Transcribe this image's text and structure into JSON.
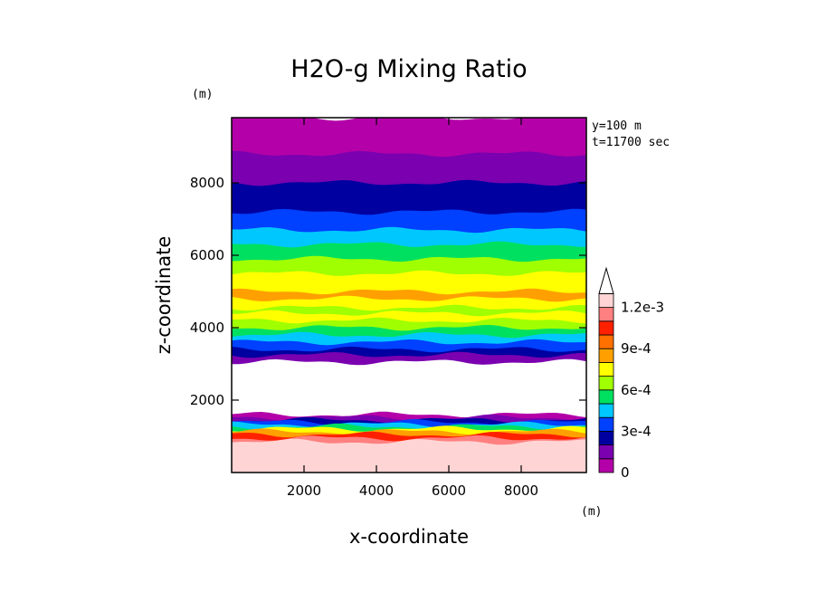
{
  "chart_data": {
    "type": "heatmap",
    "title": "H2O-g Mixing Ratio",
    "xlabel": "x-coordinate",
    "ylabel": "z-coordinate",
    "x_unit": "(m)",
    "y_unit": "(m)",
    "annotations": [
      "y=100 m",
      "t=11700 sec"
    ],
    "xlim": [
      0,
      9800
    ],
    "ylim": [
      0,
      9800
    ],
    "xticks": [
      2000,
      4000,
      6000,
      8000
    ],
    "yticks": [
      2000,
      4000,
      6000,
      8000
    ],
    "colorbar": {
      "levels": [
        0,
        0.0001,
        0.0002,
        0.0003,
        0.0004,
        0.0005,
        0.0006,
        0.0007,
        0.0008,
        0.0009,
        0.001,
        0.0011,
        0.0012
      ],
      "colors": [
        "#b400a8",
        "#7a00b0",
        "#0000a0",
        "#0040ff",
        "#00c8ff",
        "#00e060",
        "#a0ff00",
        "#ffff00",
        "#ffa000",
        "#ff7000",
        "#ff2000",
        "#ff8080",
        "#ffd4d4"
      ],
      "tick_labels": [
        "0",
        "3e-4",
        "6e-4",
        "9e-4",
        "1.2e-3"
      ],
      "tick_values": [
        0,
        0.0003,
        0.0006,
        0.0009,
        0.0012
      ],
      "extend": "max"
    },
    "bands": [
      {
        "z_top": 9800,
        "level": 0
      },
      {
        "z_top": 8800,
        "level": 1
      },
      {
        "z_top": 8000,
        "level": 2
      },
      {
        "z_top": 7200,
        "level": 3
      },
      {
        "z_top": 6700,
        "level": 4
      },
      {
        "z_top": 6300,
        "level": 5
      },
      {
        "z_top": 5900,
        "level": 6
      },
      {
        "z_top": 5500,
        "level": 7
      },
      {
        "z_top": 5000,
        "level": 8
      },
      {
        "z_top": 4800,
        "level": 7
      },
      {
        "z_top": 4550,
        "level": 6
      },
      {
        "z_top": 4400,
        "level": 7
      },
      {
        "z_top": 4200,
        "level": 6
      },
      {
        "z_top": 4000,
        "level": 5
      },
      {
        "z_top": 3800,
        "level": 4
      },
      {
        "z_top": 3600,
        "level": 3
      },
      {
        "z_top": 3400,
        "level": 2
      },
      {
        "z_top": 3250,
        "level": 1
      },
      {
        "z_top": 3050,
        "level": -1
      },
      {
        "z_top": 1600,
        "level": 0
      },
      {
        "z_top": 1520,
        "level": 1
      },
      {
        "z_top": 1450,
        "level": 2
      },
      {
        "z_top": 1390,
        "level": 3
      },
      {
        "z_top": 1330,
        "level": 4
      },
      {
        "z_top": 1270,
        "level": 5
      },
      {
        "z_top": 1210,
        "level": 7
      },
      {
        "z_top": 1130,
        "level": 8
      },
      {
        "z_top": 1050,
        "level": 10
      },
      {
        "z_top": 950,
        "level": 11
      },
      {
        "z_top": 850,
        "level": 12
      }
    ]
  }
}
